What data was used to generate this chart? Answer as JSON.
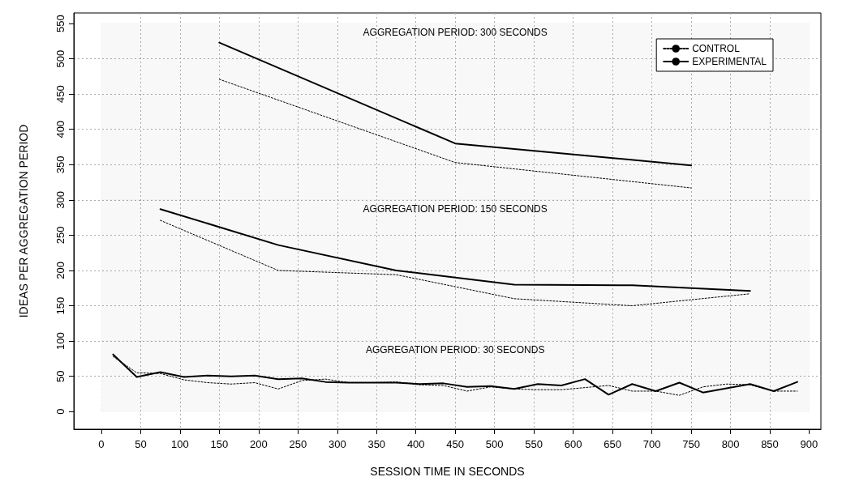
{
  "chart_data": {
    "type": "line",
    "xlabel": "SESSION TIME IN SECONDS",
    "ylabel": "IDEAS PER AGGREGATION PERIOD",
    "xlim": [
      -35,
      915
    ],
    "ylim": [
      -25,
      565
    ],
    "xticks": [
      0,
      50,
      100,
      150,
      200,
      250,
      300,
      350,
      400,
      450,
      500,
      550,
      600,
      650,
      700,
      750,
      800,
      850,
      900
    ],
    "yticks": [
      0,
      50,
      100,
      150,
      200,
      250,
      300,
      350,
      400,
      450,
      500,
      550
    ],
    "grid": true,
    "legend": "top right",
    "marker": "none",
    "bands": [
      {
        "axis": "y",
        "from": 300,
        "to": 550,
        "label": "AGGREGATION PERIOD: 300 SECONDS",
        "color": "#888888"
      },
      {
        "axis": "y",
        "from": 100,
        "to": 300,
        "label": "AGGREGATION PERIOD: 150 SECONDS",
        "color": "#888888"
      },
      {
        "axis": "y",
        "from": 0,
        "to": 100,
        "label": "AGGREGATION PERIOD: 30 SECONDS",
        "color": "#888888"
      }
    ],
    "series": [
      {
        "name": "CONTROL",
        "color": "#000000",
        "line_style": "dotted",
        "x": [
          150,
          450,
          750
        ],
        "values": [
          471,
          353,
          317
        ]
      },
      {
        "name": "EXPERIMENTAL",
        "color": "#000000",
        "line_style": "solid",
        "x": [
          150,
          450,
          750
        ],
        "values": [
          523,
          380,
          349
        ]
      },
      {
        "color": "#000000",
        "line_style": "dotted",
        "x": [
          75,
          225,
          375,
          525,
          675,
          825
        ],
        "values": [
          271,
          200,
          194,
          160,
          150,
          167
        ]
      },
      {
        "color": "#000000",
        "line_style": "solid",
        "x": [
          75,
          225,
          375,
          525,
          675,
          825
        ],
        "values": [
          287,
          236,
          200,
          180,
          179,
          171
        ]
      },
      {
        "color": "#000000",
        "line_style": "dotted",
        "x": [
          15,
          45,
          75,
          105,
          135,
          165,
          195,
          225,
          255,
          285,
          315,
          345,
          375,
          405,
          435,
          465,
          495,
          525,
          555,
          585,
          615,
          645,
          675,
          705,
          735,
          765,
          795,
          825,
          855,
          885
        ],
        "values": [
          78,
          55,
          54,
          45,
          41,
          39,
          41,
          32,
          44,
          46,
          41,
          41,
          42,
          38,
          37,
          29,
          35,
          32,
          31,
          31,
          34,
          37,
          29,
          29,
          23,
          35,
          39,
          38,
          29,
          29
        ]
      },
      {
        "color": "#000000",
        "line_style": "solid",
        "x": [
          15,
          45,
          75,
          105,
          135,
          165,
          195,
          225,
          255,
          285,
          315,
          345,
          375,
          405,
          435,
          465,
          495,
          525,
          555,
          585,
          615,
          645,
          675,
          705,
          735,
          765,
          795,
          825,
          855,
          885
        ],
        "values": [
          81,
          49,
          56,
          49,
          51,
          50,
          51,
          46,
          47,
          42,
          41,
          41,
          41,
          39,
          40,
          35,
          36,
          32,
          39,
          37,
          46,
          24,
          39,
          29,
          41,
          27,
          33,
          39,
          29,
          42
        ]
      }
    ]
  }
}
